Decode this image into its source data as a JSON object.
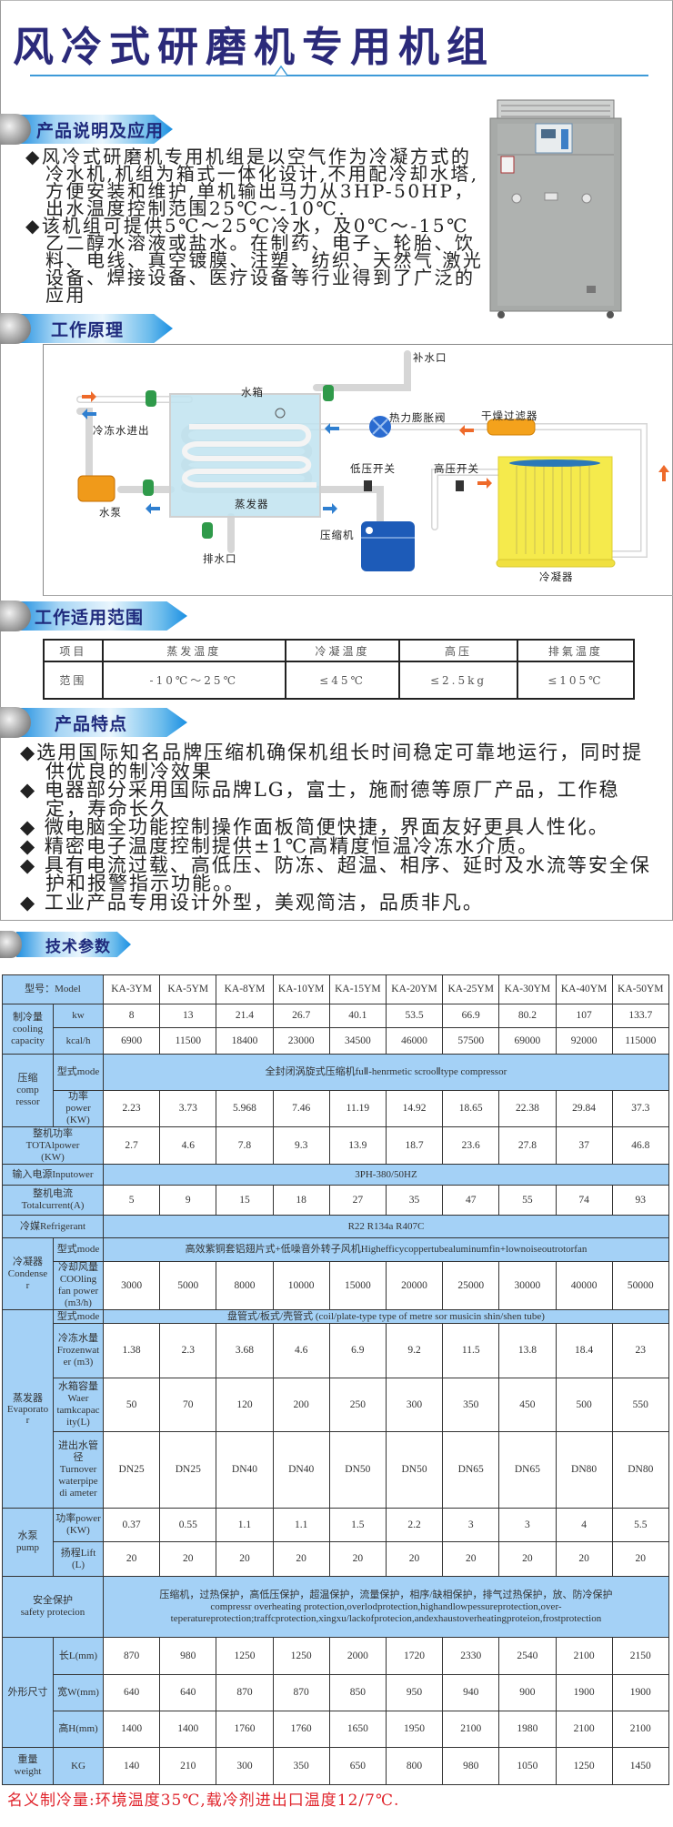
{
  "title": "风冷式研磨机专用机组",
  "sections": {
    "description": "产品说明及应用",
    "principle": "工作原理",
    "range": "工作适用范围",
    "features": "产品特点",
    "specs": "技术参数"
  },
  "description": [
    "◆风冷式研磨机专用机组是以空气作为冷凝方式的冷水机,机组为箱式一体化设计,不用配冷却水塔,方便安装和维护,单机输出马力从3HP-50HP，出水温度控制范围25℃～-10℃.",
    "◆该机组可提供5℃～25℃冷水，及0℃～-15℃乙二醇水溶液或盐水。在制药、电子、轮胎、饮料、电线、真空镀膜、注塑、纺织、天然气 激光设备、焊接设备、医疗设备等行业得到了广泛的应用"
  ],
  "diagram_labels": {
    "makeup": "补水口",
    "tank": "水箱",
    "chilled_io": "冷冻水进出",
    "expansion": "热力膨胀阀",
    "filter": "干燥过滤器",
    "low_switch": "低压开关",
    "high_switch": "高压开关",
    "evaporator": "蒸发器",
    "pump": "水泵",
    "compressor": "压缩机",
    "drain": "排水口",
    "condenser": "冷凝器"
  },
  "colors": {
    "title": "#2b2a7a",
    "accent": "#3d9ad8",
    "table_label": "#a4d1f6",
    "note": "#e0242c"
  },
  "range_table": {
    "headers": [
      "项目",
      "蒸发温度",
      "冷凝温度",
      "高压",
      "排氣温度"
    ],
    "row": [
      "范围",
      "-10℃～25℃",
      "≤45℃",
      "≤2.5kg",
      "≤105℃"
    ]
  },
  "features": [
    "◆选用国际知名品牌压缩机确保机组长时间稳定可靠地运行，同时提供优良的制冷效果",
    "◆ 电器部分采用国际品牌LG，富士，施耐德等原厂产品，工作稳定，寿命长久",
    "◆ 微电脑全功能控制操作面板简便快捷，界面友好更具人性化。",
    "◆ 精密电子温度控制提供±1℃高精度恒温冷冻水介质。",
    "◆ 具有电流过载、高低压、防冻、超温、相序、延时及水流等安全保护和报警指示功能。。",
    "◆ 工业产品专用设计外型，美观简洁，品质非凡。"
  ],
  "specs": {
    "model_label": "型号：Model",
    "models": [
      "KA-3YM",
      "KA-5YM",
      "KA-8YM",
      "KA-10YM",
      "KA-15YM",
      "KA-20YM",
      "KA-25YM",
      "KA-30YM",
      "KA-40YM",
      "KA-50YM"
    ],
    "cooling": {
      "label": "制冷量\ncooling\ncapacity",
      "kw_label": "kw",
      "kw": [
        "8",
        "13",
        "21.4",
        "26.7",
        "40.1",
        "53.5",
        "66.9",
        "80.2",
        "107",
        "133.7"
      ],
      "kcal_label": "kcal/h",
      "kcal": [
        "6900",
        "11500",
        "18400",
        "23000",
        "34500",
        "46000",
        "57500",
        "69000",
        "92000",
        "115000"
      ]
    },
    "compressor": {
      "label": "压缩\ncomp\nressor",
      "mode_label": "型式mode",
      "mode": "全封闭涡旋式压缩机fuⅡ-henrmetic scrooⅡtype compressor",
      "power_label": "功率\npower\n(KW)",
      "power": [
        "2.23",
        "3.73",
        "5.968",
        "7.46",
        "11.19",
        "14.92",
        "18.65",
        "22.38",
        "29.84",
        "37.3"
      ]
    },
    "total_power": {
      "label": "整机功率\nTOTAlpower\n(KW)",
      "values": [
        "2.7",
        "4.6",
        "7.8",
        "9.3",
        "13.9",
        "18.7",
        "23.6",
        "27.8",
        "37",
        "46.8"
      ]
    },
    "input_power": {
      "label": "输入电源Inputower",
      "value": "3PH-380/50HZ"
    },
    "total_current": {
      "label": "整机电流\nTotalcurrent(A)",
      "values": [
        "5",
        "9",
        "15",
        "18",
        "27",
        "35",
        "47",
        "55",
        "74",
        "93"
      ]
    },
    "refrigerant": {
      "label": "冷媒Refrigerant",
      "value": "R22 R134a R407C"
    },
    "condenser": {
      "label": "冷凝器\nCondense\nr",
      "mode_label": "型式mode",
      "mode": "高效紫铜套铝翅片式+低噪音外转子风机Highefficycoppertubealuminumfin+lownoiseoutrotorfan",
      "fan_label": "冷却风量\nCOOling\nfan power\n(m3/h)",
      "fan": [
        "3000",
        "5000",
        "8000",
        "10000",
        "15000",
        "20000",
        "25000",
        "30000",
        "40000",
        "50000"
      ]
    },
    "evaporator": {
      "label": "蒸发器\nEvaporato\nr",
      "mode_label": "型式mode",
      "mode": "盘管式/板式/壳管式 (coil/plate-type type of metre sor musicin shin/shen tube)",
      "frozen_label": "冷冻水量\nFrozenwat\ner (m3)",
      "frozen": [
        "1.38",
        "2.3",
        "3.68",
        "4.6",
        "6.9",
        "9.2",
        "11.5",
        "13.8",
        "18.4",
        "23"
      ],
      "tank_label": "水箱容量\nWaer\ntamkcapac\nity(L)",
      "tank": [
        "50",
        "70",
        "120",
        "200",
        "250",
        "300",
        "350",
        "450",
        "500",
        "550"
      ],
      "pipe_label": "进出水管径\nTurnover\nwaterpipe\ndi ameter",
      "pipe": [
        "DN25",
        "DN25",
        "DN40",
        "DN40",
        "DN50",
        "DN50",
        "DN65",
        "DN65",
        "DN80",
        "DN80"
      ]
    },
    "pump": {
      "label": "水泵\npump",
      "power_label": "功率power\n(KW)",
      "power": [
        "0.37",
        "0.55",
        "1.1",
        "1.1",
        "1.5",
        "2.2",
        "3",
        "3",
        "4",
        "5.5"
      ],
      "lift_label": "扬程Lift\n(L)",
      "lift": [
        "20",
        "20",
        "20",
        "20",
        "20",
        "20",
        "20",
        "20",
        "20",
        "20"
      ]
    },
    "safety": {
      "label": "安全保护\nsafety protecion",
      "value": "压缩机，过热保护，高低压保护，超温保护，流量保护，相序/缺相保护，排气过热保护，放、防冷保护\ncompressr overheating protection,overlodprotection,highandlowpessureprotection,over-teperatureprotection;traffcprotection,xingxu/lackofprotecion,andexhaustoverheatingproteion,frostprotection"
    },
    "dimensions": {
      "label": "外形尺寸",
      "length_label": "长L(mm)",
      "length": [
        "870",
        "980",
        "1250",
        "1250",
        "2000",
        "1720",
        "2330",
        "2540",
        "2100",
        "2150"
      ],
      "width_label": "宽W(mm)",
      "width": [
        "640",
        "640",
        "870",
        "870",
        "850",
        "950",
        "940",
        "900",
        "1900",
        "1900"
      ],
      "height_label": "高H(mm)",
      "height": [
        "1400",
        "1400",
        "1760",
        "1760",
        "1650",
        "1950",
        "2100",
        "1980",
        "2100",
        "2100"
      ]
    },
    "weight": {
      "label": "重量\nweight",
      "unit": "KG",
      "values": [
        "140",
        "210",
        "300",
        "350",
        "650",
        "800",
        "980",
        "1050",
        "1250",
        "1450"
      ]
    }
  },
  "note": "名义制冷量:环境温度35℃,载冷剂进出口温度12/7℃."
}
